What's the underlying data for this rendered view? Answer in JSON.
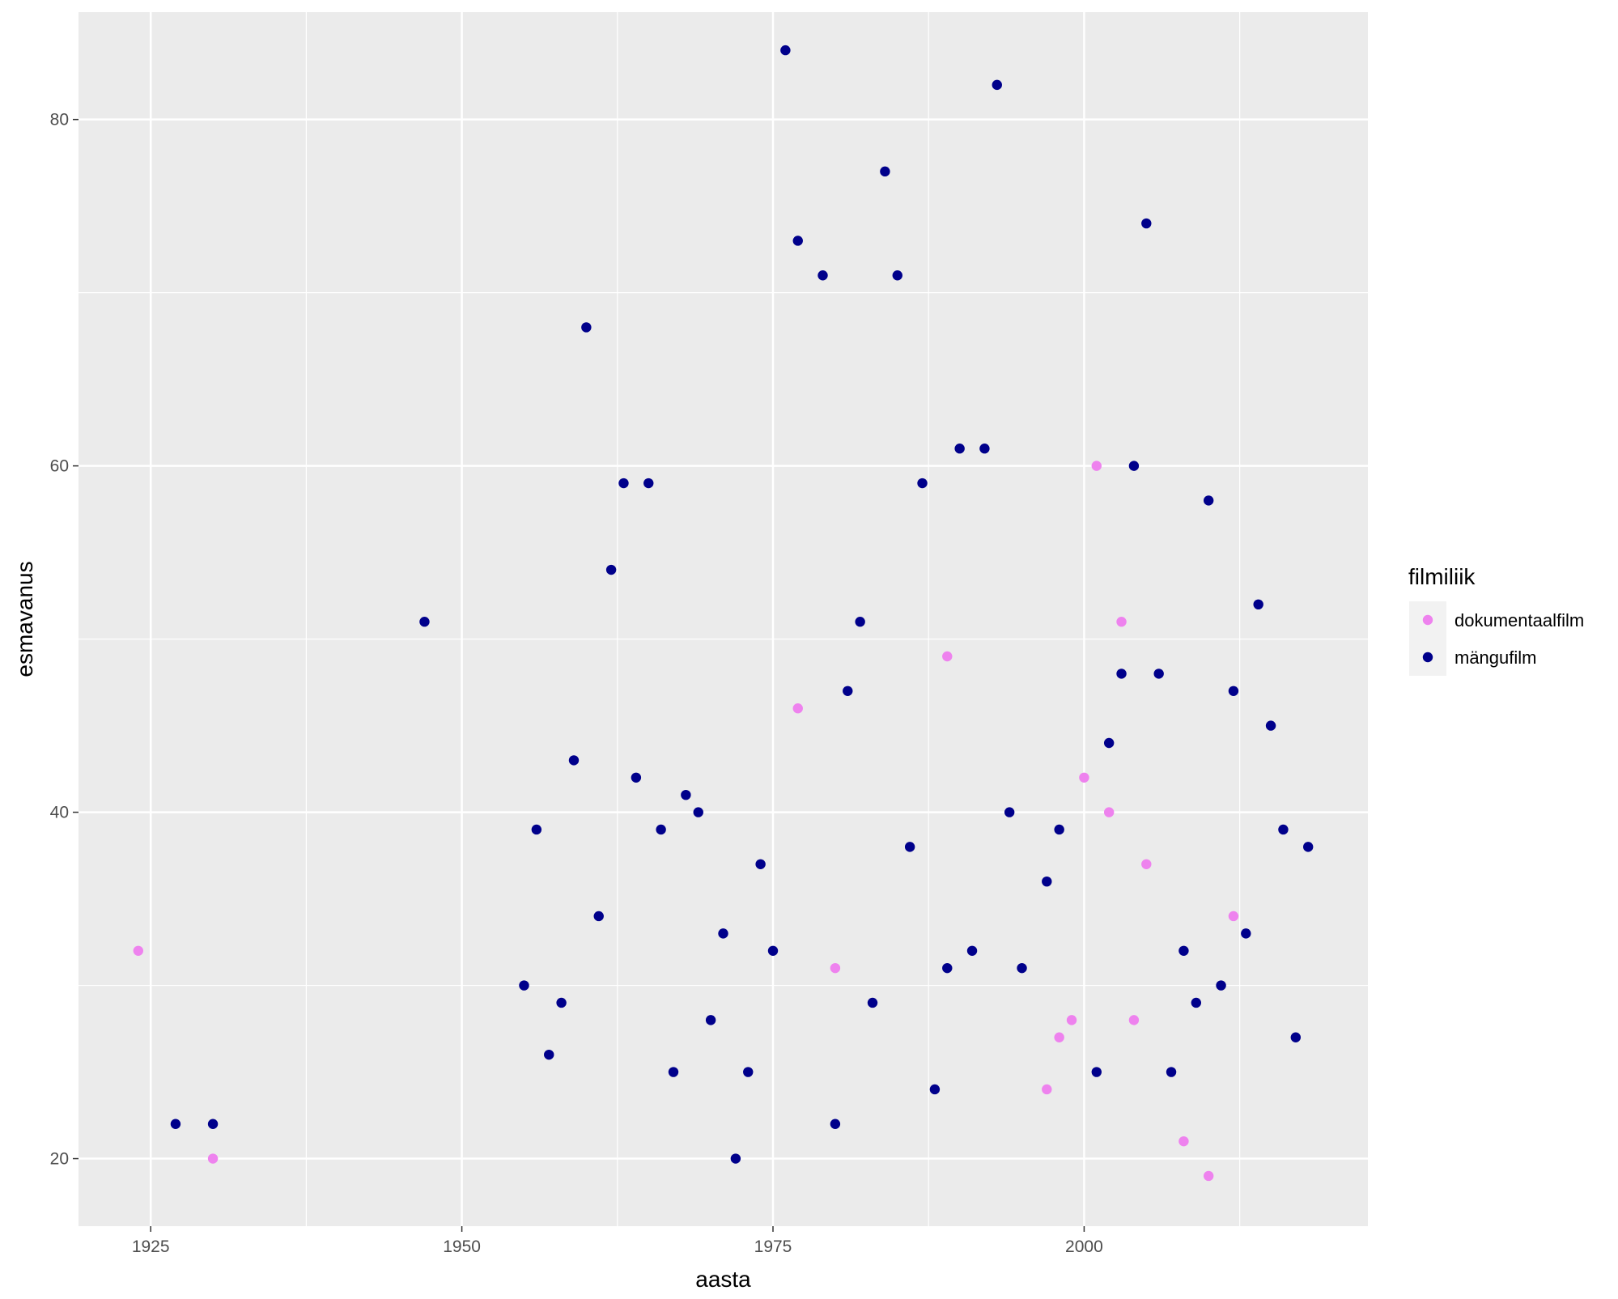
{
  "chart_data": {
    "type": "scatter",
    "title": "",
    "xlabel": "aasta",
    "ylabel": "esmavanus",
    "xlim": [
      1919.2,
      2022.8
    ],
    "ylim": [
      16.1,
      86.2
    ],
    "x_ticks": [
      1925,
      1950,
      1975,
      2000
    ],
    "y_ticks": [
      20,
      40,
      60,
      80
    ],
    "grid": true,
    "legend": {
      "title": "filmiliik",
      "position": "right"
    },
    "colors": {
      "panel_background": "#ebebeb",
      "grid": "#ffffff",
      "legend_key_background": "#f2f2f2"
    },
    "series": [
      {
        "name": "dokumentaalfilm",
        "color": "#ee82ee",
        "points": [
          [
            1924,
            32
          ],
          [
            1930,
            20
          ],
          [
            1977,
            46
          ],
          [
            1980,
            31
          ],
          [
            1989,
            49
          ],
          [
            1997,
            24
          ],
          [
            1998,
            27
          ],
          [
            1999,
            28
          ],
          [
            2000,
            42
          ],
          [
            2001,
            60
          ],
          [
            2002,
            40
          ],
          [
            2003,
            51
          ],
          [
            2004,
            28
          ],
          [
            2005,
            37
          ],
          [
            2008,
            21
          ],
          [
            2010,
            19
          ],
          [
            2012,
            34
          ]
        ]
      },
      {
        "name": "mängufilm",
        "color": "#00008b",
        "points": [
          [
            1927,
            22
          ],
          [
            1930,
            22
          ],
          [
            1947,
            51
          ],
          [
            1955,
            30
          ],
          [
            1956,
            39
          ],
          [
            1957,
            26
          ],
          [
            1958,
            29
          ],
          [
            1959,
            43
          ],
          [
            1960,
            68
          ],
          [
            1961,
            34
          ],
          [
            1962,
            54
          ],
          [
            1963,
            59
          ],
          [
            1964,
            42
          ],
          [
            1965,
            59
          ],
          [
            1966,
            39
          ],
          [
            1967,
            25
          ],
          [
            1968,
            41
          ],
          [
            1969,
            40
          ],
          [
            1970,
            28
          ],
          [
            1971,
            33
          ],
          [
            1972,
            20
          ],
          [
            1973,
            25
          ],
          [
            1974,
            37
          ],
          [
            1975,
            32
          ],
          [
            1976,
            84
          ],
          [
            1977,
            73
          ],
          [
            1979,
            71
          ],
          [
            1980,
            22
          ],
          [
            1981,
            47
          ],
          [
            1982,
            51
          ],
          [
            1983,
            29
          ],
          [
            1984,
            77
          ],
          [
            1985,
            71
          ],
          [
            1986,
            38
          ],
          [
            1987,
            59
          ],
          [
            1988,
            24
          ],
          [
            1989,
            31
          ],
          [
            1990,
            61
          ],
          [
            1991,
            32
          ],
          [
            1992,
            61
          ],
          [
            1993,
            82
          ],
          [
            1994,
            40
          ],
          [
            1995,
            31
          ],
          [
            1997,
            36
          ],
          [
            1998,
            39
          ],
          [
            2001,
            25
          ],
          [
            2002,
            44
          ],
          [
            2003,
            48
          ],
          [
            2004,
            60
          ],
          [
            2005,
            74
          ],
          [
            2006,
            48
          ],
          [
            2007,
            25
          ],
          [
            2008,
            32
          ],
          [
            2009,
            29
          ],
          [
            2010,
            58
          ],
          [
            2011,
            30
          ],
          [
            2012,
            47
          ],
          [
            2013,
            33
          ],
          [
            2014,
            52
          ],
          [
            2015,
            45
          ],
          [
            2016,
            39
          ],
          [
            2017,
            27
          ],
          [
            2018,
            38
          ]
        ]
      }
    ]
  }
}
